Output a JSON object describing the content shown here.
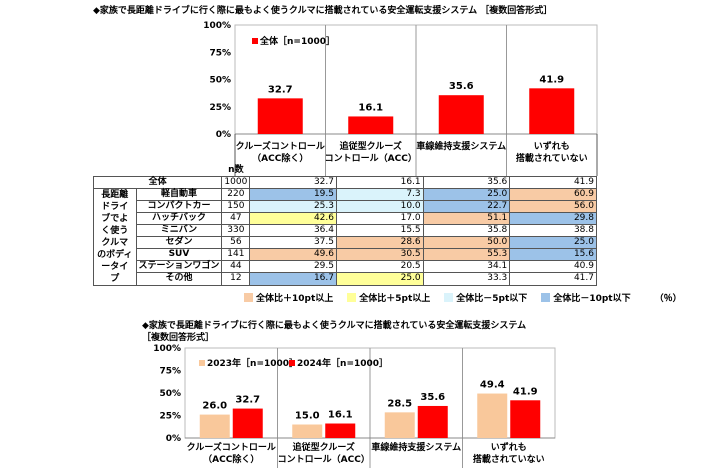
{
  "colors": {
    "red": "#ff0000",
    "peach": "#f9c89b",
    "orange": "#f8cba5",
    "yellow": "#ffff99",
    "cyan": "#daf3fb",
    "blue": "#9cc2e8"
  },
  "chart_data": [
    {
      "type": "bar",
      "title": "◆家族で長距離ドライブに行く際に最もよく使うクルマに搭載されている安全運転支援システム ［複数回答形式］",
      "categories": [
        [
          "クルーズコントロール",
          "（ACC除く）"
        ],
        [
          "追従型クルーズ",
          "コントロール（ACC）"
        ],
        [
          "車線維持支援システム"
        ],
        [
          "いずれも",
          "搭載されていない"
        ]
      ],
      "series": [
        {
          "name": "全体［n=1000］",
          "values": [
            32.7,
            16.1,
            35.6,
            41.9
          ]
        }
      ],
      "yticks": [
        "0%",
        "25%",
        "50%",
        "75%",
        "100%"
      ],
      "ylim": [
        0,
        100
      ],
      "legend": "top-left"
    },
    {
      "type": "bar",
      "title": "◆家族で長距離ドライブに行く際に最もよく使うクルマに搭載されている安全運転支援システム",
      "subtitle": "［複数回答形式］",
      "categories": [
        [
          "クルーズコントロール",
          "（ACC除く）"
        ],
        [
          "追従型クルーズ",
          "コントロール（ACC）"
        ],
        [
          "車線維持支援システム"
        ],
        [
          "いずれも",
          "搭載されていない"
        ]
      ],
      "series": [
        {
          "name": "2023年［n=1000］",
          "values": [
            26.0,
            15.0,
            28.5,
            49.4
          ]
        },
        {
          "name": "2024年［n=1000］",
          "values": [
            32.7,
            16.1,
            35.6,
            41.9
          ]
        }
      ],
      "yticks": [
        "0%",
        "25%",
        "50%",
        "75%",
        "100%"
      ],
      "ylim": [
        0,
        100
      ],
      "legend": "top-left"
    }
  ],
  "table": {
    "n_header": "n数",
    "total": {
      "label": "全体",
      "n": "1000",
      "values": [
        "32.7",
        "16.1",
        "35.6",
        "41.9"
      ]
    },
    "group_label": "長距離ドライブでよく使うクルマのボディータイプ",
    "rows": [
      {
        "label": "軽自動車",
        "n": "220",
        "values": [
          "19.5",
          "7.3",
          "25.0",
          "60.9"
        ],
        "hl": [
          "b",
          "c",
          "b",
          "o"
        ]
      },
      {
        "label": "コンパクトカー",
        "n": "150",
        "values": [
          "25.3",
          "10.0",
          "22.7",
          "56.0"
        ],
        "hl": [
          "c",
          "c",
          "b",
          "o"
        ]
      },
      {
        "label": "ハッチバック",
        "n": "47",
        "values": [
          "42.6",
          "17.0",
          "51.1",
          "29.8"
        ],
        "hl": [
          "y",
          "",
          "o",
          "b"
        ]
      },
      {
        "label": "ミニバン",
        "n": "330",
        "values": [
          "36.4",
          "15.5",
          "35.8",
          "38.8"
        ],
        "hl": [
          "",
          "",
          "",
          ""
        ]
      },
      {
        "label": "セダン",
        "n": "56",
        "values": [
          "37.5",
          "28.6",
          "50.0",
          "25.0"
        ],
        "hl": [
          "",
          "o",
          "o",
          "b"
        ]
      },
      {
        "label": "SUV",
        "n": "141",
        "values": [
          "49.6",
          "30.5",
          "55.3",
          "15.6"
        ],
        "hl": [
          "o",
          "o",
          "o",
          "b"
        ]
      },
      {
        "label": "ステーションワゴン",
        "n": "44",
        "values": [
          "29.5",
          "20.5",
          "34.1",
          "40.9"
        ],
        "hl": [
          "",
          "",
          "",
          ""
        ]
      },
      {
        "label": "その他",
        "n": "12",
        "values": [
          "16.7",
          "25.0",
          "33.3",
          "41.7"
        ],
        "hl": [
          "b",
          "y",
          "",
          ""
        ]
      }
    ],
    "legend": [
      {
        "code": "o",
        "label": "全体比＋10pt以上"
      },
      {
        "code": "y",
        "label": "全体比＋5pt以上"
      },
      {
        "code": "c",
        "label": "全体比－5pt以下"
      },
      {
        "code": "b",
        "label": "全体比－10pt以下"
      }
    ],
    "unit": "（％）"
  }
}
